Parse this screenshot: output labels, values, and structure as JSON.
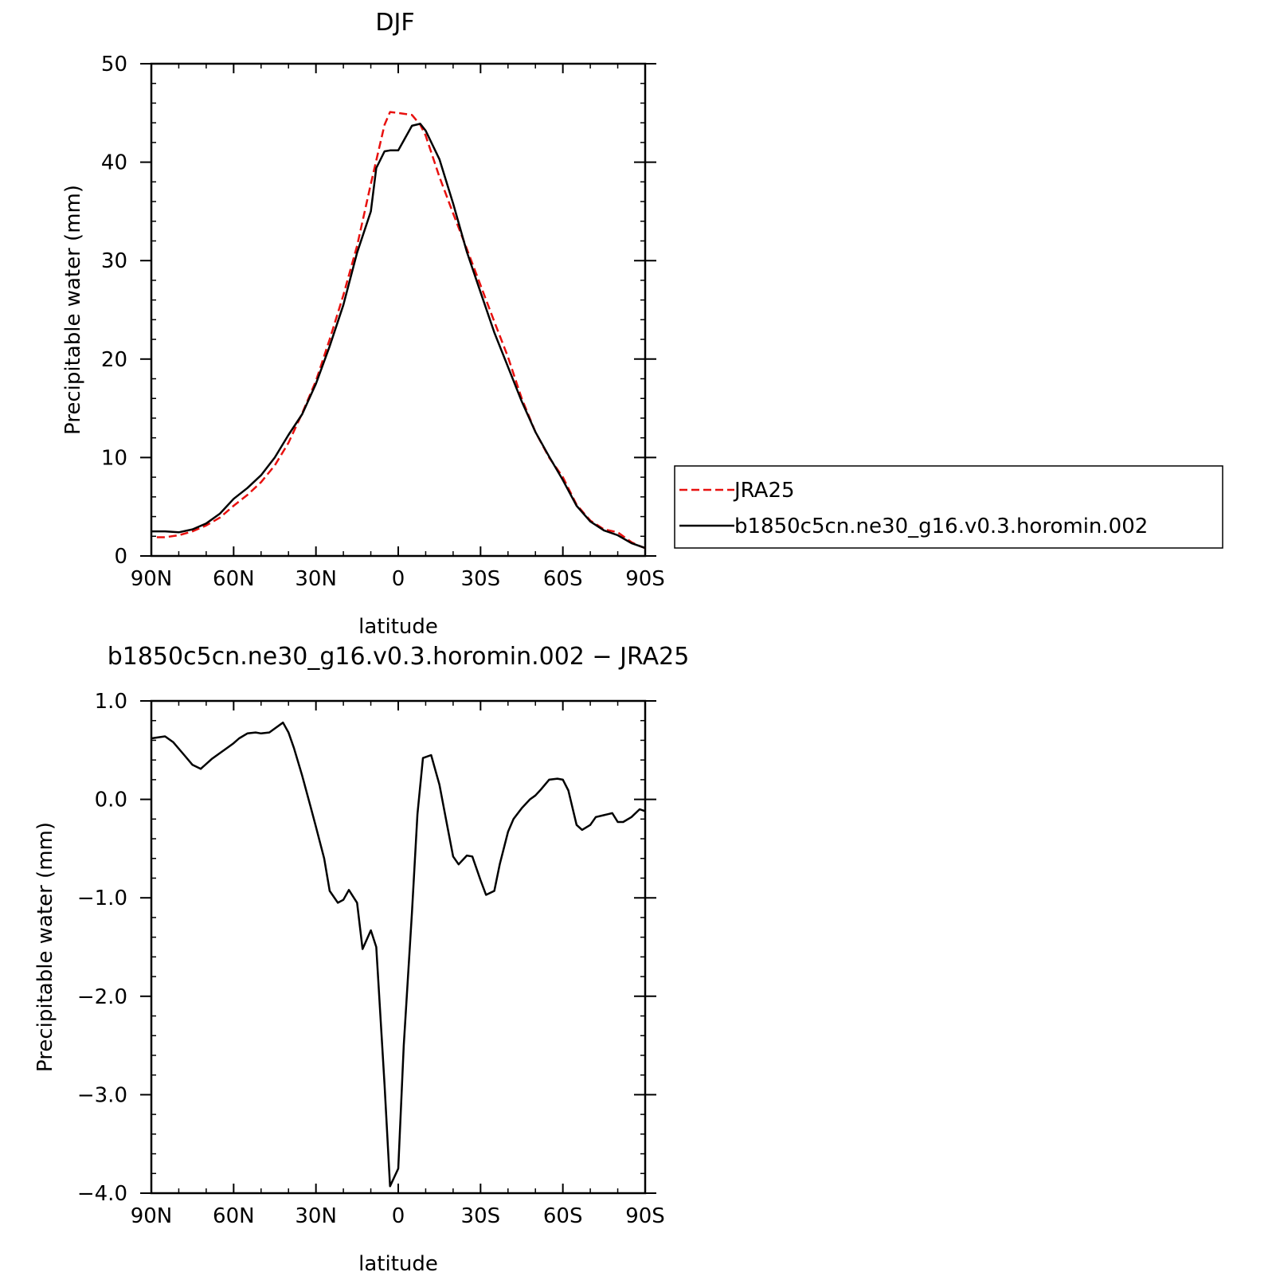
{
  "chart_data": [
    {
      "type": "line",
      "title": "DJF",
      "xlabel": "latitude",
      "ylabel": "Precipitable water (mm)",
      "xlim": [
        90,
        -90
      ],
      "ylim": [
        0,
        50
      ],
      "x_ticks": [
        {
          "value": 90,
          "label": "90N"
        },
        {
          "value": 60,
          "label": "60N"
        },
        {
          "value": 30,
          "label": "30N"
        },
        {
          "value": 0,
          "label": "0"
        },
        {
          "value": -30,
          "label": "30S"
        },
        {
          "value": -60,
          "label": "60S"
        },
        {
          "value": -90,
          "label": "90S"
        }
      ],
      "y_ticks": [
        {
          "value": 0,
          "label": "0"
        },
        {
          "value": 10,
          "label": "10"
        },
        {
          "value": 20,
          "label": "20"
        },
        {
          "value": 30,
          "label": "30"
        },
        {
          "value": 40,
          "label": "40"
        },
        {
          "value": 50,
          "label": "50"
        }
      ],
      "grid": false,
      "legend": {
        "placement": "outside-right"
      },
      "series": [
        {
          "name": "JRA25",
          "color": "#e8110f",
          "dash": true,
          "x": [
            88,
            85,
            80,
            75,
            70,
            65,
            60,
            55,
            50,
            45,
            40,
            35,
            30,
            25,
            20,
            15,
            10,
            5,
            3,
            0,
            -5,
            -8,
            -10,
            -15,
            -20,
            -25,
            -30,
            -35,
            -40,
            -45,
            -50,
            -55,
            -60,
            -65,
            -70,
            -75,
            -80,
            -85,
            -88,
            -90
          ],
          "y": [
            1.9,
            1.9,
            2.1,
            2.5,
            3.1,
            3.9,
            5.1,
            6.2,
            7.5,
            9.2,
            11.5,
            14.5,
            17.8,
            22.0,
            26.5,
            31.5,
            37.8,
            43.8,
            45.1,
            45.0,
            44.8,
            43.8,
            42.7,
            38.5,
            34.8,
            31.2,
            27.5,
            23.8,
            20.2,
            16.0,
            12.6,
            10.0,
            8.0,
            5.2,
            3.6,
            2.7,
            2.4,
            1.4,
            1.0,
            0.8
          ]
        },
        {
          "name": "b1850c5cn.ne30_g16.v0.3.horomin.002",
          "color": "#000000",
          "dash": false,
          "x": [
            90,
            85,
            80,
            75,
            70,
            65,
            60,
            55,
            50,
            45,
            40,
            35,
            30,
            25,
            20,
            15,
            10,
            8,
            5,
            3,
            0,
            -5,
            -8,
            -10,
            -15,
            -20,
            -25,
            -30,
            -35,
            -40,
            -45,
            -50,
            -55,
            -60,
            -65,
            -70,
            -75,
            -80,
            -85,
            -88,
            -90
          ],
          "y": [
            2.5,
            2.5,
            2.4,
            2.7,
            3.3,
            4.3,
            5.8,
            6.9,
            8.2,
            10.0,
            12.3,
            14.4,
            17.5,
            21.3,
            25.5,
            30.8,
            35.0,
            39.4,
            41.1,
            41.2,
            41.2,
            43.7,
            43.9,
            43.2,
            40.3,
            35.8,
            30.9,
            26.8,
            22.7,
            19.2,
            15.7,
            12.6,
            10.1,
            7.7,
            5.1,
            3.5,
            2.6,
            2.1,
            1.3,
            1.0,
            0.8
          ]
        }
      ]
    },
    {
      "type": "line",
      "title": "b1850c5cn.ne30_g16.v0.3.horomin.002 − JRA25",
      "xlabel": "latitude",
      "ylabel": "Precipitable water (mm)",
      "xlim": [
        90,
        -90
      ],
      "ylim": [
        -4.0,
        1.0
      ],
      "x_ticks": [
        {
          "value": 90,
          "label": "90N"
        },
        {
          "value": 60,
          "label": "60N"
        },
        {
          "value": 30,
          "label": "30N"
        },
        {
          "value": 0,
          "label": "0"
        },
        {
          "value": -30,
          "label": "30S"
        },
        {
          "value": -60,
          "label": "60S"
        },
        {
          "value": -90,
          "label": "90S"
        }
      ],
      "y_ticks": [
        {
          "value": -4.0,
          "label": "−4.0"
        },
        {
          "value": -3.0,
          "label": "−3.0"
        },
        {
          "value": -2.0,
          "label": "−2.0"
        },
        {
          "value": -1.0,
          "label": "−1.0"
        },
        {
          "value": 0.0,
          "label": "0.0"
        },
        {
          "value": 1.0,
          "label": "1.0"
        }
      ],
      "grid": false,
      "series": [
        {
          "color": "#000000",
          "dash": false,
          "x": [
            90,
            85,
            82,
            78,
            75,
            72,
            68,
            65,
            62,
            60,
            58,
            55,
            52,
            50,
            47,
            45,
            42,
            40,
            38,
            35,
            32,
            30,
            27,
            25,
            22,
            20,
            18,
            15,
            13,
            10,
            8,
            5,
            3,
            0,
            -2,
            -5,
            -7,
            -9,
            -12,
            -14,
            -15,
            -18,
            -20,
            -22,
            -25,
            -27,
            -30,
            -32,
            -35,
            -37,
            -40,
            -42,
            -45,
            -48,
            -50,
            -52,
            -55,
            -58,
            -60,
            -62,
            -65,
            -67,
            -70,
            -72,
            -75,
            -78,
            -80,
            -82,
            -85,
            -88,
            -90
          ],
          "y": [
            0.62,
            0.64,
            0.58,
            0.45,
            0.35,
            0.31,
            0.41,
            0.47,
            0.53,
            0.57,
            0.62,
            0.67,
            0.68,
            0.67,
            0.68,
            0.72,
            0.78,
            0.68,
            0.52,
            0.24,
            -0.07,
            -0.28,
            -0.6,
            -0.93,
            -1.05,
            -1.02,
            -0.92,
            -1.05,
            -1.52,
            -1.33,
            -1.5,
            -2.9,
            -3.93,
            -3.75,
            -2.5,
            -1.15,
            -0.15,
            0.42,
            0.45,
            0.25,
            0.15,
            -0.29,
            -0.58,
            -0.66,
            -0.57,
            -0.58,
            -0.82,
            -0.97,
            -0.93,
            -0.66,
            -0.33,
            -0.2,
            -0.09,
            0.0,
            0.04,
            0.1,
            0.2,
            0.21,
            0.2,
            0.09,
            -0.26,
            -0.31,
            -0.26,
            -0.18,
            -0.16,
            -0.14,
            -0.23,
            -0.23,
            -0.18,
            -0.1,
            -0.12
          ]
        }
      ]
    }
  ]
}
